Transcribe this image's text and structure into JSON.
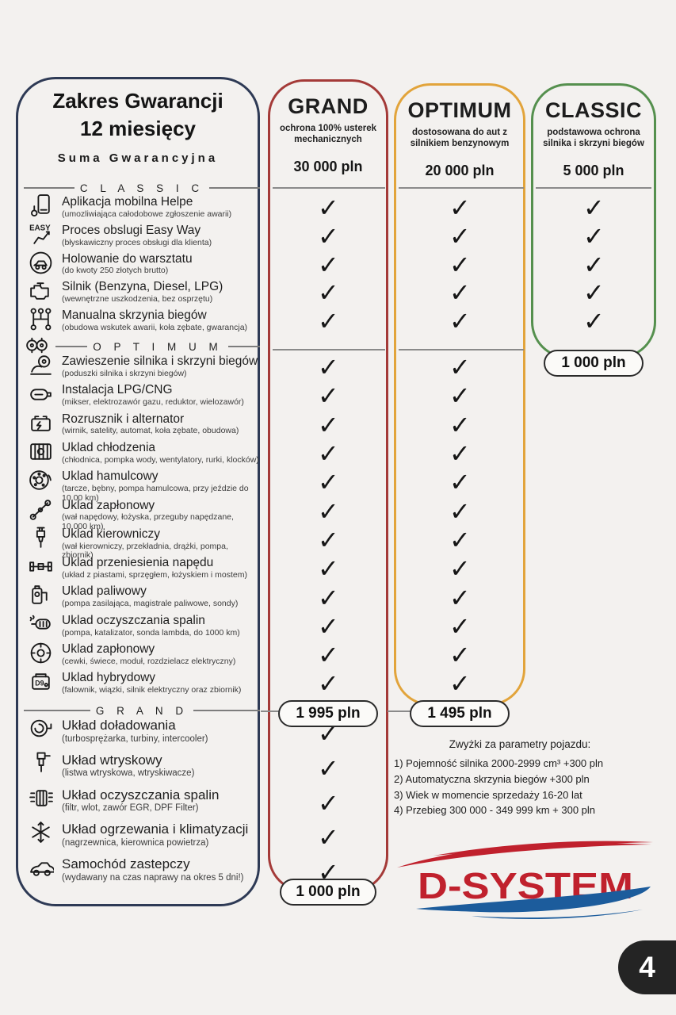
{
  "page": {
    "background": "#f3f1ef",
    "page_number": "4"
  },
  "header_panel": {
    "title_line1": "Zakres Gwarancji",
    "title_line2": "12 miesięcy",
    "subtitle": "Suma Gwarancyjna"
  },
  "plans": [
    {
      "id": "grand",
      "name": "GRAND",
      "description": "ochrona 100% usterek mechanicznych",
      "coverage_sum": "30 000 pln",
      "price": "1 995 pln",
      "extra_price": "1 000 pln",
      "accent_color": "#a43a38"
    },
    {
      "id": "optimum",
      "name": "OPTIMUM",
      "description": "dostosowana do aut z silnikiem benzynowym",
      "coverage_sum": "20 000 pln",
      "price": "1 495 pln",
      "accent_color": "#e2a43b"
    },
    {
      "id": "classic",
      "name": "CLASSIC",
      "description": "podstawowa ochrona silnika i skrzyni biegów",
      "coverage_sum": "5 000 pln",
      "price": "1 000 pln",
      "accent_color": "#55904e"
    }
  ],
  "check_symbol": "✓",
  "tiers": [
    {
      "label": "C L A S S I C",
      "included_in": [
        "grand",
        "optimum",
        "classic"
      ],
      "items": [
        {
          "icon": "mobile-app-icon",
          "title": "Aplikacja mobilna Helpe",
          "subtitle": "(umozliwiająca całodobowe zgłoszenie awarii)"
        },
        {
          "icon": "easy-way-icon",
          "title": "Proces obslugi Easy Way",
          "subtitle": "(błyskawiczny proces obsługi dla klienta)"
        },
        {
          "icon": "tow-truck-icon",
          "title": "Holowanie do warsztatu",
          "subtitle": "(do kwoty 250 złotych brutto)"
        },
        {
          "icon": "engine-icon",
          "title": "Silnik (Benzyna, Diesel, LPG)",
          "subtitle": "(wewnętrzne uszkodzenia, bez osprzętu)"
        },
        {
          "icon": "gear-shifter-icon",
          "title": "Manualna skrzynia biegów",
          "subtitle": "(obudowa wskutek awarii, koła zębate, gwarancja)"
        }
      ]
    },
    {
      "label": "O P T I M U M",
      "divider_icon": "gearbox-icon",
      "included_in": [
        "grand",
        "optimum"
      ],
      "items": [
        {
          "icon": "engine-mount-icon",
          "title": "Zawieszenie silnika i skrzyni biegów",
          "subtitle": "(poduszki silnika i skrzyni biegów)"
        },
        {
          "icon": "lpg-tank-icon",
          "title": "Instalacja LPG/CNG",
          "subtitle": "(mikser, elektrozawór gazu, reduktor, wielozawór)"
        },
        {
          "icon": "battery-icon",
          "title": "Rozrusznik i alternator",
          "subtitle": "(wirnik, satelity, automat, koła zębate, obudowa)"
        },
        {
          "icon": "radiator-icon",
          "title": "Uklad chłodzenia",
          "subtitle": "(chłodnica, pompka wody, wentylatory, rurki, klocków)"
        },
        {
          "icon": "brake-disc-icon",
          "title": "Uklad hamulcowy",
          "subtitle": "(tarcze, bębny, pompa hamulcowa, przy jeździe do 10.00 km)"
        },
        {
          "icon": "driveshaft-icon",
          "title": "Uklad zapłonowy",
          "subtitle": "(wał napędowy, łożyska, przeguby napędzane, 10.000 km)"
        },
        {
          "icon": "spark-plug-icon",
          "title": "Uklad kierowniczy",
          "subtitle": "(wał kierowniczy, przekładnia, drążki, pompa, zbiornik)"
        },
        {
          "icon": "axle-icon",
          "title": "Uklad przeniesienia napędu",
          "subtitle": "(układ z piastami, sprzęgłem, łożyskiem i mostem)"
        },
        {
          "icon": "fuel-pump-icon",
          "title": "Uklad paliwowy",
          "subtitle": "(pompa zasilająca, magistrale paliwowe, sondy)"
        },
        {
          "icon": "exhaust-icon",
          "title": "Uklad oczyszczania spalin",
          "subtitle": "(pompa, katalizator, sonda lambda, do 1000 km)"
        },
        {
          "icon": "distributor-icon",
          "title": "Uklad zapłonowy",
          "subtitle": "(cewki, świece, moduł, rozdzielacz elektryczny)"
        },
        {
          "icon": "hybrid-battery-icon",
          "title": "Uklad hybrydowy",
          "subtitle": "(falownik, wiązki, silnik elektryczny oraz zbiornik)"
        }
      ]
    },
    {
      "label": "G R A N D",
      "included_in": [
        "grand"
      ],
      "items": [
        {
          "icon": "turbo-icon",
          "title": "Układ doładowania",
          "subtitle": "(turbosprężarka, turbiny, intercooler)"
        },
        {
          "icon": "injector-icon",
          "title": "Układ wtryskowy",
          "subtitle": "(listwa wtryskowa, wtryskiwacze)"
        },
        {
          "icon": "dpf-filter-icon",
          "title": "Układ oczyszczania spalin",
          "subtitle": "(filtr, wlot, zawór EGR, DPF Filter)"
        },
        {
          "icon": "snowflake-icon",
          "title": "Układ ogrzewania i klimatyzacji",
          "subtitle": "(nagrzewnica, kierownica powietrza)"
        },
        {
          "icon": "car-icon",
          "title": "Samochód zastepczy",
          "subtitle": "(wydawany na czas naprawy na okres 5 dni!)"
        }
      ]
    }
  ],
  "notes": {
    "title": "Zwyżki za parametry pojazdu:",
    "items": [
      "1) Pojemność silnika 2000-2999 cm³ +300 pln",
      "2) Automatyczna skrzynia biegów +300 pln",
      "3) Wiek w momencie sprzedaży 16-20 lat",
      "4) Przebieg 300 000 - 349 999 km + 300 pln"
    ]
  },
  "logo": {
    "text": "D-SYSTEM",
    "red": "#c0212d",
    "blue": "#1c5c9c"
  }
}
